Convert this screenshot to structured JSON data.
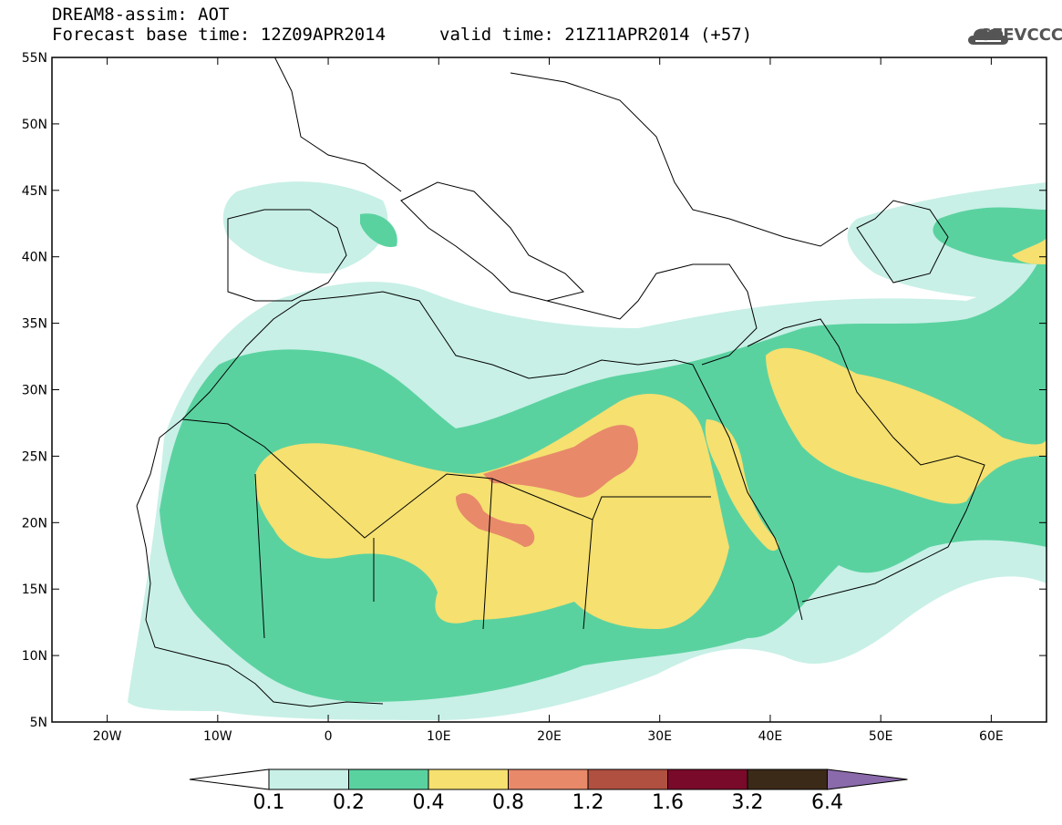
{
  "header": {
    "title": "DREAM8-assim: AOT",
    "base_time": "Forecast base time: 12Z09APR2014",
    "valid_time": "valid time: 21Z11APR2014 (+57)",
    "logo_text": "SEEVCCC"
  },
  "map": {
    "lon_range": [
      -25,
      65
    ],
    "lat_range": [
      5,
      55
    ],
    "lat_ticks": [
      "55N",
      "50N",
      "45N",
      "40N",
      "35N",
      "30N",
      "25N",
      "20N",
      "15N",
      "10N",
      "5N"
    ],
    "lon_ticks": [
      "20W",
      "10W",
      "0",
      "10E",
      "20E",
      "30E",
      "40E",
      "50E",
      "60E"
    ]
  },
  "legend": {
    "levels": [
      "0.1",
      "0.2",
      "0.4",
      "0.8",
      "1.2",
      "1.6",
      "3.2",
      "6.4"
    ],
    "colors": [
      "#c8f0e6",
      "#5ad2a0",
      "#f5e070",
      "#e8896a",
      "#b05040",
      "#7a0a2a",
      "#3c2a18"
    ],
    "over_color": "#8a6aaa",
    "under_color": "#ffffff"
  }
}
